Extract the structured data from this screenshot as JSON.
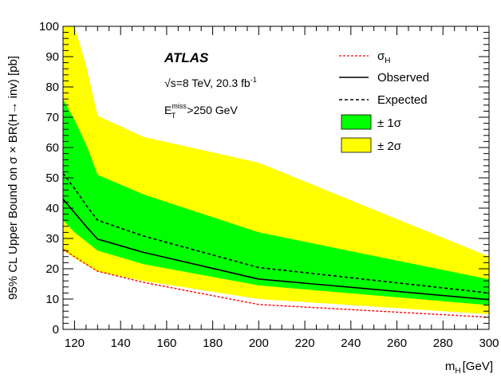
{
  "chart_data": {
    "type": "line",
    "title": "",
    "xlabel_main": "m",
    "xlabel_sub": "H",
    "xlabel_unit": "[GeV]",
    "ylabel": "95% CL Upper Bound on  σ × BR(H→ inv) [pb]",
    "xlim": [
      115,
      300
    ],
    "ylim": [
      0,
      100
    ],
    "x_ticks": [
      120,
      140,
      160,
      180,
      200,
      220,
      240,
      260,
      280,
      300
    ],
    "y_ticks": [
      0,
      10,
      20,
      30,
      40,
      50,
      60,
      70,
      80,
      90,
      100
    ],
    "grid": false,
    "legend_position": "top-right",
    "x": [
      115,
      120,
      125,
      130,
      150,
      200,
      300
    ],
    "series": [
      {
        "name": "σH",
        "style": "red-dashed",
        "values": [
          26.5,
          24.0,
          21.5,
          19.2,
          15.5,
          8.2,
          4.0
        ]
      },
      {
        "name": "Observed",
        "style": "black-solid",
        "values": [
          43.0,
          38.5,
          34.0,
          29.8,
          25.4,
          16.6,
          9.8
        ]
      },
      {
        "name": "Expected",
        "style": "black-dashed",
        "values": [
          51.5,
          46.5,
          41.0,
          36.0,
          30.8,
          20.4,
          12.0
        ]
      }
    ],
    "bands": [
      {
        "name": "± 2σ",
        "color": "#ffff00",
        "lower": [
          26.0,
          23.5,
          21.3,
          19.0,
          16.0,
          10.0,
          5.0
        ],
        "upper": [
          100,
          100,
          87.0,
          70.5,
          63.5,
          55.0,
          24.0
        ]
      },
      {
        "name": "± 1σ",
        "color": "#00ff00",
        "lower": [
          36.0,
          32.0,
          29.0,
          26.0,
          21.5,
          14.5,
          8.0
        ],
        "upper": [
          76.0,
          69.0,
          61.0,
          51.0,
          44.5,
          32.0,
          16.5
        ]
      }
    ],
    "legend": {
      "sigma_main": "σ",
      "sigma_sub": "H",
      "observed": "Observed",
      "expected": "Expected",
      "band1": "± 1σ",
      "band2": "± 2σ"
    },
    "annotations": {
      "experiment": "ATLAS",
      "energy_sqrt": "√s",
      "energy_text": "=8 TeV, 20.3 fb",
      "energy_sup": "-1",
      "cut_main": "E",
      "cut_sup": "miss",
      "cut_sub": "T",
      "cut_text": ">250 GeV"
    },
    "colors": {
      "band_2sigma": "#ffff00",
      "band_1sigma": "#00ff00",
      "sigma_h": "#ff0000",
      "observed": "#000000",
      "expected": "#000000"
    }
  }
}
